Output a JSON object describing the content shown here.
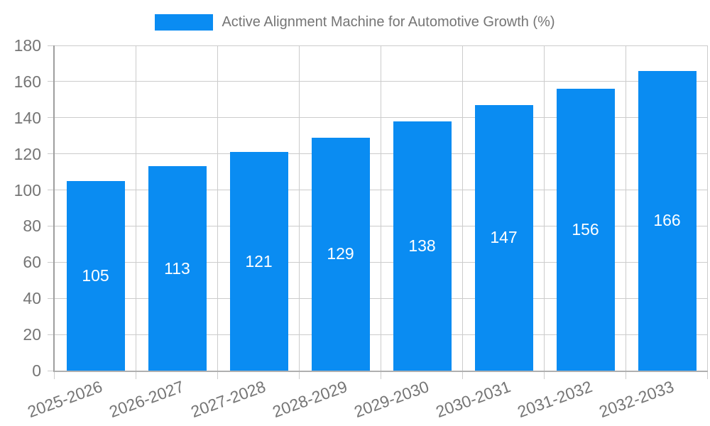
{
  "chart_data": {
    "type": "bar",
    "title": "Active Alignment Machine for Automotive Growth (%)",
    "categories": [
      "2025-2026",
      "2026-2027",
      "2027-2028",
      "2028-2029",
      "2029-2030",
      "2030-2031",
      "2031-2032",
      "2032-2033"
    ],
    "values": [
      105,
      113,
      121,
      129,
      138,
      147,
      156,
      166
    ],
    "xlabel": "",
    "ylabel": "",
    "ylim": [
      0,
      180
    ],
    "ytick_step": 20,
    "yticks": [
      0,
      20,
      40,
      60,
      80,
      100,
      120,
      140,
      160,
      180
    ],
    "grid": true,
    "legend_position": "top-center",
    "value_label_position": "inside-center",
    "x_tick_label_rotation_deg": -20,
    "colors": {
      "bar": "#0a8cf2",
      "grid": "#cccccc",
      "axis": "#a8a8a8",
      "tick_text": "#757575",
      "value_label_text": "#ffffff",
      "background": "#ffffff"
    }
  }
}
